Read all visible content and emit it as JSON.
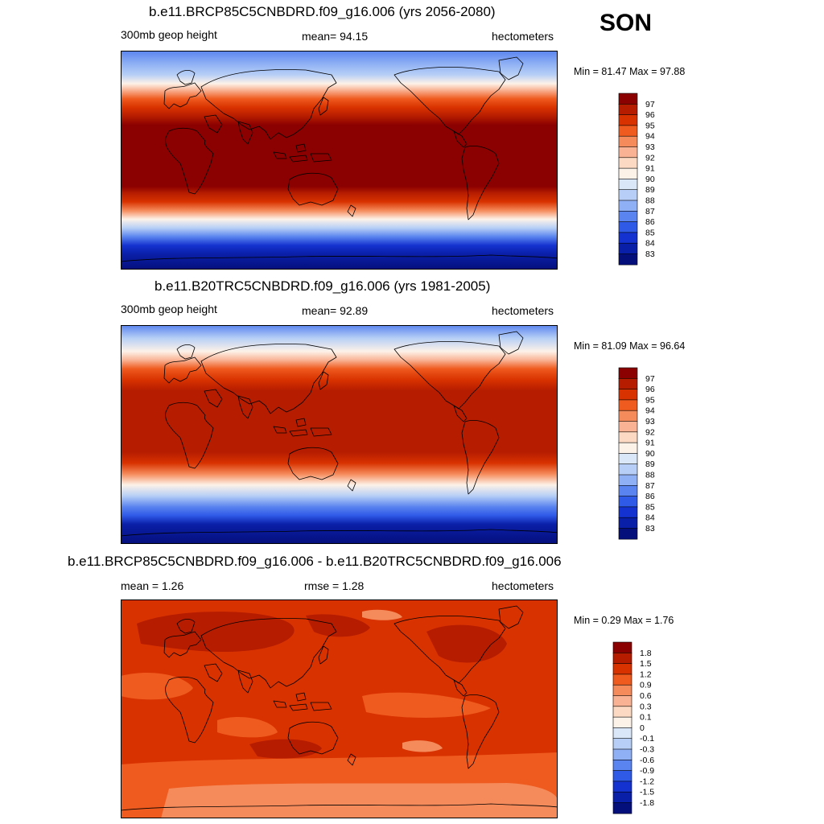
{
  "season": "SON",
  "units": "hectometers",
  "panels": [
    {
      "id": "future",
      "title": "b.e11.BRCP85C5CNBDRD.f09_g16.006 (yrs 2056-2080)",
      "left_label": "300mb geop height",
      "mean_text": "mean=  94.15",
      "units": "hectometers",
      "minmax": "Min =  81.47 Max =  97.88",
      "colorbar_labels": [
        "97",
        "96",
        "95",
        "94",
        "93",
        "92",
        "91",
        "90",
        "89",
        "88",
        "87",
        "86",
        "85",
        "84",
        "83"
      ]
    },
    {
      "id": "historical",
      "title": "b.e11.B20TRC5CNBDRD.f09_g16.006 (yrs 1981-2005)",
      "left_label": "300mb geop height",
      "mean_text": "mean=  92.89",
      "units": "hectometers",
      "minmax": "Min =  81.09 Max =  96.64",
      "colorbar_labels": [
        "97",
        "96",
        "95",
        "94",
        "93",
        "92",
        "91",
        "90",
        "89",
        "88",
        "87",
        "86",
        "85",
        "84",
        "83"
      ]
    },
    {
      "id": "difference",
      "title": "b.e11.BRCP85C5CNBDRD.f09_g16.006 - b.e11.B20TRC5CNBDRD.f09_g16.006",
      "left_label": "mean =   1.26",
      "mean_text": "rmse =   1.28",
      "units": "hectometers",
      "minmax": "Min =   0.29 Max =   1.76",
      "colorbar_labels": [
        "1.8",
        "1.5",
        "1.2",
        "0.9",
        "0.6",
        "0.3",
        "0.1",
        "0",
        "-0.1",
        "-0.3",
        "-0.6",
        "-0.9",
        "-1.2",
        "-1.5",
        "-1.8"
      ]
    }
  ],
  "palette": [
    "#8b0000",
    "#b51c00",
    "#d83200",
    "#ef5a1e",
    "#f58a5a",
    "#f9b394",
    "#fcd9c3",
    "#fdf2e8",
    "#d9e7f9",
    "#b7cff6",
    "#8fb0f4",
    "#5a84ef",
    "#2f5ae8",
    "#1432cf",
    "#0a1fa8",
    "#050f7c"
  ]
}
